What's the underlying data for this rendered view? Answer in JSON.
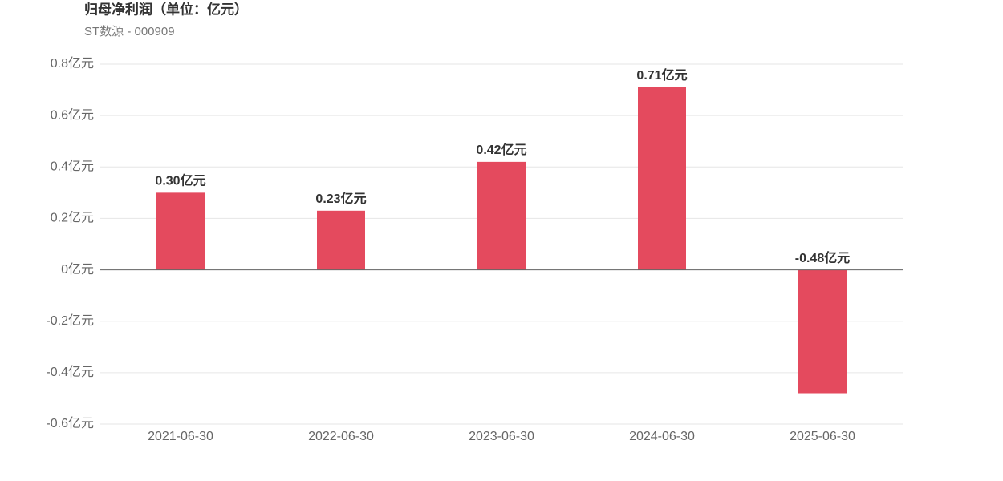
{
  "chart_data": {
    "type": "bar",
    "title": "归母净利润（单位：亿元）",
    "subtitle": "ST数源 - 000909",
    "categories": [
      "2021-06-30",
      "2022-06-30",
      "2023-06-30",
      "2024-06-30",
      "2025-06-30"
    ],
    "values": [
      0.3,
      0.23,
      0.42,
      0.71,
      -0.48
    ],
    "value_labels": [
      "0.30亿元",
      "0.23亿元",
      "0.42亿元",
      "0.71亿元",
      "-0.48亿元"
    ],
    "color": "#e44a5e",
    "ylim": [
      -0.6,
      0.8
    ],
    "yticks": [
      {
        "value": -0.6,
        "label": "-0.6亿元"
      },
      {
        "value": -0.4,
        "label": "-0.4亿元"
      },
      {
        "value": -0.2,
        "label": "-0.2亿元"
      },
      {
        "value": 0,
        "label": "0亿元"
      },
      {
        "value": 0.2,
        "label": "0.2亿元"
      },
      {
        "value": 0.4,
        "label": "0.4亿元"
      },
      {
        "value": 0.6,
        "label": "0.6亿元"
      },
      {
        "value": 0.8,
        "label": "0.8亿元"
      }
    ],
    "grid": true
  }
}
